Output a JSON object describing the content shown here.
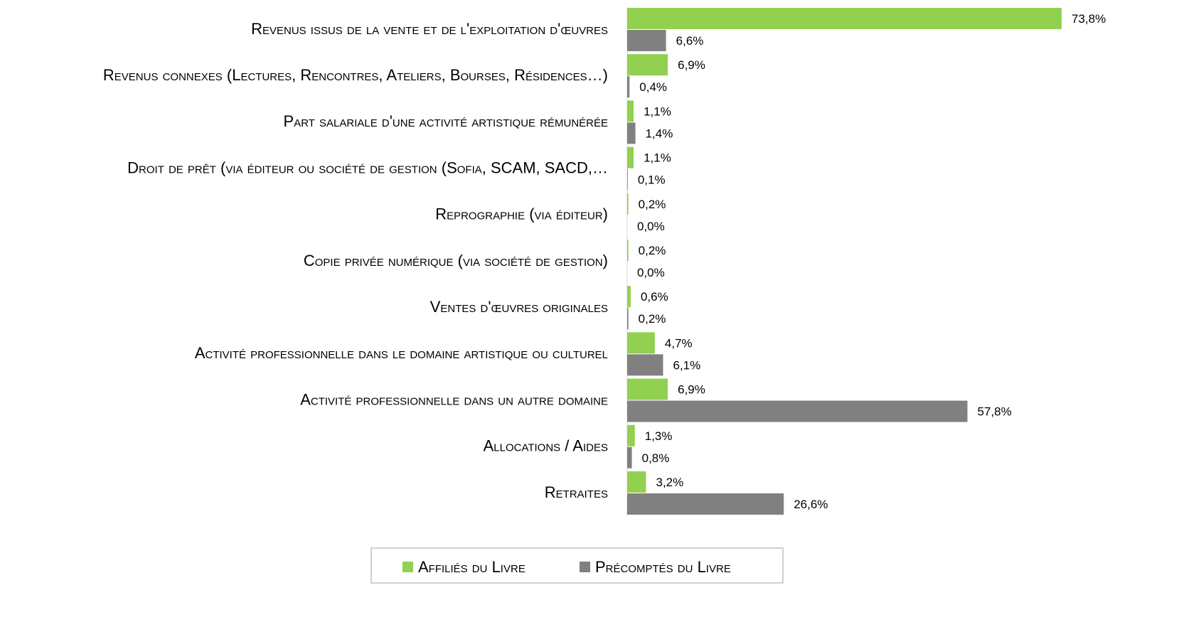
{
  "chart_data": {
    "type": "hbar",
    "categories": [
      "Revenus issus de la vente et de l'exploitation d'œuvres",
      "Revenus connexes (Lectures, Rencontres, Ateliers, Bourses, Résidences…)",
      "Part salariale d'une activité artistique rémunérée",
      "Droit de prêt (via éditeur ou société de gestion (Sofia, SCAM, SACD,…",
      "Reprographie (via éditeur)",
      "Copie privée numérique (via société de gestion)",
      "Ventes d'œuvres originales",
      "Activité professionnelle dans le domaine artistique ou culturel",
      "Activité professionnelle dans un autre domaine",
      "Allocations / Aides",
      "Retraites"
    ],
    "series": [
      {
        "name": "Affiliés du Livre",
        "color": "#92d050",
        "values": [
          73.8,
          6.9,
          1.1,
          1.1,
          0.2,
          0.2,
          0.6,
          4.7,
          6.9,
          1.3,
          3.2
        ],
        "value_labels": [
          "73,8%",
          "6,9%",
          "1,1%",
          "1,1%",
          "0,2%",
          "0,2%",
          "0,6%",
          "4,7%",
          "6,9%",
          "1,3%",
          "3,2%"
        ]
      },
      {
        "name": "Précomptés du Livre",
        "color": "#808080",
        "values": [
          6.6,
          0.4,
          1.4,
          0.1,
          0.0,
          0.0,
          0.2,
          6.1,
          57.8,
          0.8,
          26.6
        ],
        "value_labels": [
          "6,6%",
          "0,4%",
          "1,4%",
          "0,1%",
          "0,0%",
          "0,0%",
          "0,2%",
          "6,1%",
          "57,8%",
          "0,8%",
          "26,6%"
        ]
      }
    ],
    "legend": "bottom"
  }
}
